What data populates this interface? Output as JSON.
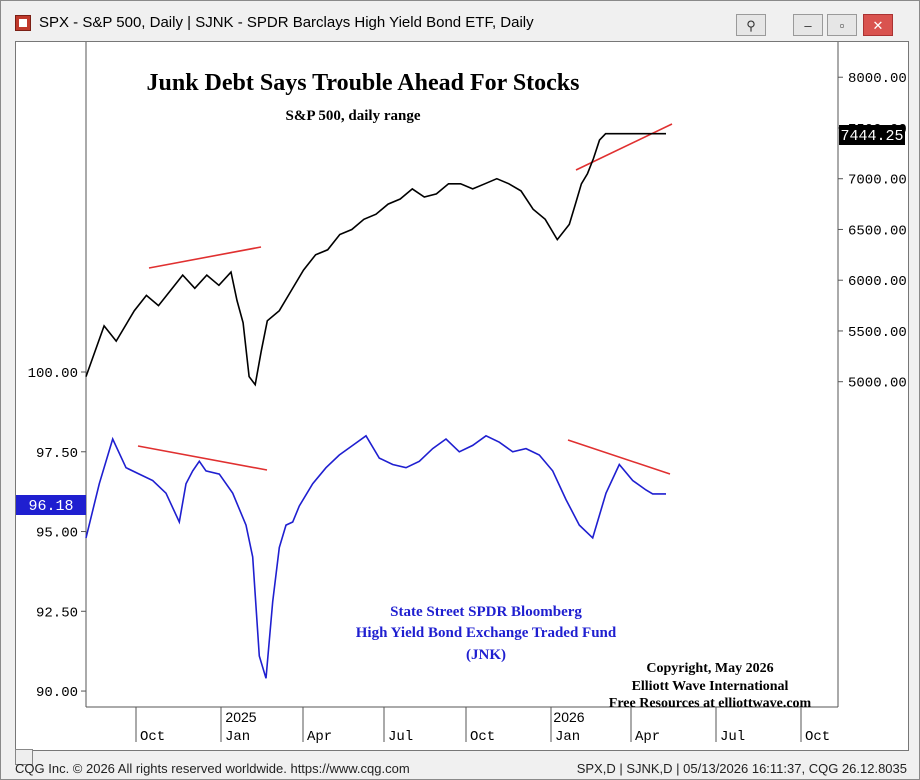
{
  "window": {
    "title": "SPX - S&P 500, Daily  |  SJNK - SPDR Barclays High Yield Bond ETF, Daily"
  },
  "footer": {
    "left": "CQG Inc. © 2026 All rights reserved worldwide. https://www.cqg.com",
    "right": "SPX,D  |  SJNK,D | 05/13/2026 16:11:37, CQG 26.12.8035"
  },
  "colors": {
    "spx_line": "#000000",
    "jnk_line": "#1f1fd0",
    "trend_line": "#e03030",
    "last_price_bg_spx": "#000000",
    "last_price_bg_jnk": "#1f1fd0"
  },
  "chart_data": {
    "type": "line",
    "title": "Junk Debt Says Trouble Ahead For Stocks",
    "subtitle": "S&P 500, daily range",
    "x_ticks": [
      "Oct",
      "Jan",
      "Apr",
      "Jul",
      "Oct",
      "Jan",
      "Apr",
      "Jul",
      "Oct"
    ],
    "year_labels": [
      {
        "label": "2025"
      },
      {
        "label": "2026"
      }
    ],
    "spx_axis": {
      "ticks": [
        "8000.00",
        "7500.00",
        "7000.00",
        "6500.00",
        "6000.00",
        "5500.00",
        "5000.00"
      ],
      "last": "7444.25",
      "ylim": [
        4800,
        8150
      ]
    },
    "jnk_axis": {
      "ticks": [
        "100.00",
        "97.50",
        "95.00",
        "92.50",
        "90.00"
      ],
      "last": "96.18",
      "ylim": [
        89.5,
        100
      ]
    },
    "series": [
      {
        "name": "S&P 500",
        "x": [
          0,
          3,
          5,
          8,
          10,
          12,
          14,
          16,
          18,
          20,
          22,
          24,
          25,
          26,
          27,
          28,
          29,
          30,
          32,
          34,
          36,
          38,
          40,
          42,
          44,
          46,
          48,
          50,
          52,
          54,
          56,
          58,
          60,
          62,
          64,
          66,
          68,
          70,
          72,
          74,
          76,
          78,
          80,
          81,
          82,
          83,
          84,
          85,
          86,
          87,
          88,
          90,
          92,
          94,
          96
        ],
        "values": [
          5050,
          5550,
          5400,
          5700,
          5850,
          5750,
          5900,
          6050,
          5920,
          6050,
          5950,
          6080,
          5800,
          5580,
          5050,
          4970,
          5300,
          5600,
          5700,
          5900,
          6100,
          6250,
          6300,
          6450,
          6500,
          6600,
          6650,
          6750,
          6800,
          6900,
          6820,
          6850,
          6950,
          6950,
          6900,
          6950,
          7000,
          6950,
          6880,
          6700,
          6600,
          6400,
          6550,
          6750,
          6950,
          7050,
          7200,
          7380,
          7444,
          7444,
          7444,
          7444,
          7444,
          7444,
          7444
        ]
      },
      {
        "name": "State Street SPDR Bloomberg High Yield Bond Exchange Traded Fund (JNK)",
        "x": [
          0,
          2,
          4,
          6,
          8,
          10,
          12,
          14,
          15,
          16,
          17,
          18,
          20,
          22,
          24,
          25,
          26,
          27,
          28,
          29,
          30,
          31,
          32,
          34,
          36,
          38,
          40,
          42,
          44,
          46,
          48,
          50,
          52,
          54,
          56,
          58,
          60,
          62,
          64,
          66,
          68,
          70,
          72,
          74,
          76,
          78,
          80,
          82,
          84,
          85,
          86,
          87
        ],
        "values": [
          94.8,
          96.5,
          97.9,
          97.0,
          96.8,
          96.6,
          96.2,
          95.3,
          96.5,
          96.9,
          97.2,
          96.9,
          96.8,
          96.2,
          95.2,
          94.2,
          91.1,
          90.4,
          92.8,
          94.5,
          95.2,
          95.3,
          95.8,
          96.5,
          97.0,
          97.4,
          97.7,
          98.0,
          97.3,
          97.1,
          97.0,
          97.2,
          97.6,
          97.9,
          97.5,
          97.7,
          98.0,
          97.8,
          97.5,
          97.6,
          97.4,
          96.9,
          96.0,
          95.2,
          94.8,
          96.2,
          97.1,
          96.6,
          96.3,
          96.18,
          96.18,
          96.18
        ]
      }
    ],
    "annotations": {
      "jnk_label_line1": "State Street SPDR Bloomberg",
      "jnk_label_line2": "High Yield Bond Exchange Traded Fund",
      "jnk_label_line3": "(JNK)",
      "copyright_line1": "Copyright, May 2026",
      "copyright_line2": "Elliott Wave International",
      "copyright_line3": "Free Resources at elliottwave.com"
    },
    "trendlines": [
      {
        "series": "S&P 500",
        "from": {
          "x": 17,
          "y": 6100
        },
        "to": {
          "x": 46,
          "y": 6350
        }
      },
      {
        "series": "S&P 500",
        "from": {
          "x": 123,
          "y": 7080
        },
        "to": {
          "x": 158,
          "y": 7500
        }
      },
      {
        "series": "JNK",
        "from": {
          "x": 13,
          "y": 98.0
        },
        "to": {
          "x": 47,
          "y": 97.1
        }
      },
      {
        "series": "JNK",
        "from": {
          "x": 123,
          "y": 98.1
        },
        "to": {
          "x": 158,
          "y": 97.2
        }
      }
    ]
  }
}
